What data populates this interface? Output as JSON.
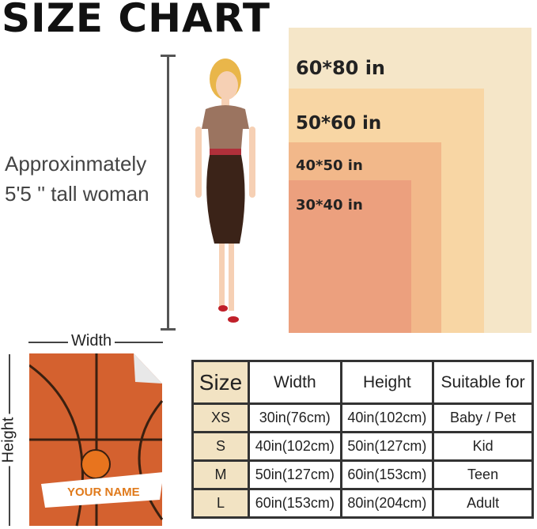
{
  "title": "SIZE CHART",
  "description": {
    "line1": "Approxinmately",
    "line2": "5'5 '' tall woman"
  },
  "sizes_visual": [
    {
      "label": "60*80 in",
      "color": "#f5e6c8"
    },
    {
      "label": "50*60 in",
      "color": "#f8d6a4"
    },
    {
      "label": "40*50 in",
      "color": "#f2b88a"
    },
    {
      "label": "30*40 in",
      "color": "#eca07e"
    }
  ],
  "blanket": {
    "width_label": "Width",
    "height_label": "Height",
    "name_text": "YOUR NAME"
  },
  "table": {
    "headers": [
      "Size",
      "Width",
      "Height",
      "Suitable for"
    ],
    "rows": [
      [
        "XS",
        "30in(76cm)",
        "40in(102cm)",
        "Baby / Pet"
      ],
      [
        "S",
        "40in(102cm)",
        "50in(127cm)",
        "Kid"
      ],
      [
        "M",
        "50in(127cm)",
        "60in(153cm)",
        "Teen"
      ],
      [
        "L",
        "60in(153cm)",
        "80in(204cm)",
        "Adult"
      ]
    ]
  }
}
